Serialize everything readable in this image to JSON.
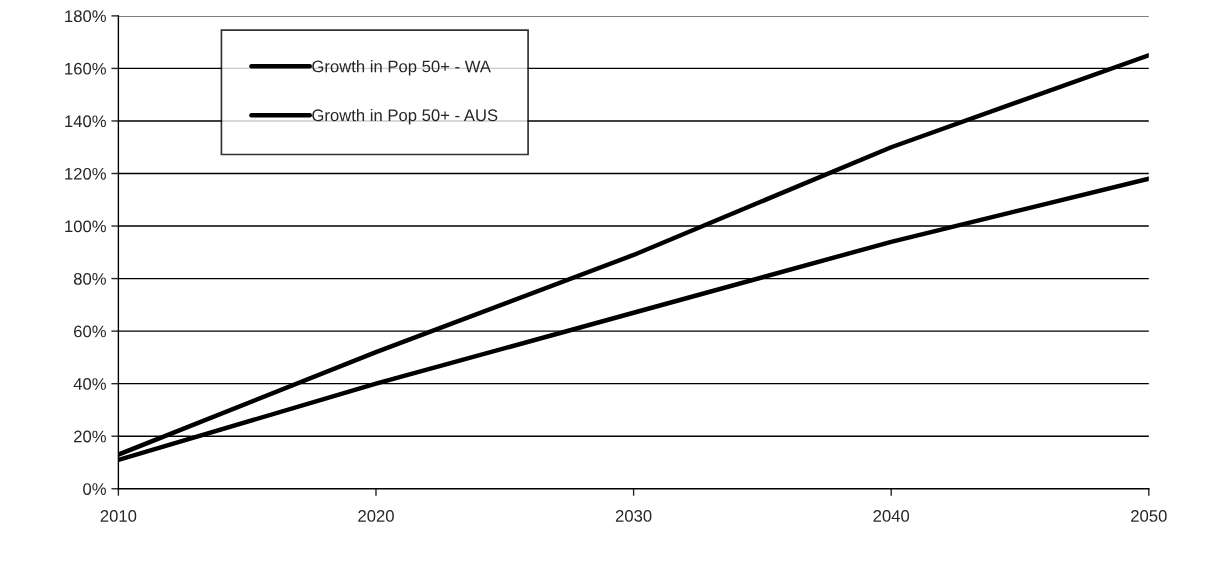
{
  "chart_data": {
    "type": "line",
    "x": [
      2010,
      2020,
      2030,
      2040,
      2050
    ],
    "series": [
      {
        "name": "Growth in Pop 50+ - WA",
        "color": "#000000",
        "values": [
          13,
          52,
          89,
          130,
          165
        ]
      },
      {
        "name": "Growth in Pop 50+ - AUS",
        "color": "#000000",
        "values": [
          11,
          40,
          67,
          94,
          118
        ]
      }
    ],
    "xlim": [
      2010,
      2050
    ],
    "xticks": [
      2010,
      2020,
      2030,
      2040,
      2050
    ],
    "ylim": [
      0,
      180
    ],
    "yticks": [
      {
        "value": 0,
        "label": "0%"
      },
      {
        "value": 20,
        "label": "20%"
      },
      {
        "value": 40,
        "label": "40%"
      },
      {
        "value": 60,
        "label": "60%"
      },
      {
        "value": 80,
        "label": "80%"
      },
      {
        "value": 100,
        "label": "100%"
      },
      {
        "value": 120,
        "label": "120%"
      },
      {
        "value": 140,
        "label": "140%"
      },
      {
        "value": 160,
        "label": "160%"
      },
      {
        "value": 180,
        "label": "180%"
      }
    ],
    "grid": "y",
    "legend": "top left",
    "marker": "none",
    "line_style": "solid"
  }
}
